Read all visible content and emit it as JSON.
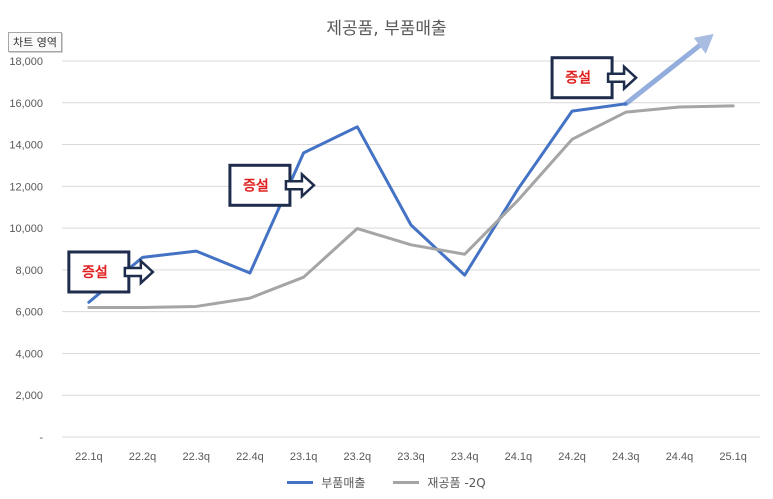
{
  "chart_data": {
    "type": "line",
    "title": "제공품, 부품매출",
    "categories": [
      "22.1q",
      "22.2q",
      "22.3q",
      "22.4q",
      "23.1q",
      "23.2q",
      "23.3q",
      "23.4q",
      "24.1q",
      "24.2q",
      "24.3q",
      "24.4q",
      "25.1q"
    ],
    "series": [
      {
        "name": "부품매출",
        "color": "#4472c4",
        "values": [
          6450,
          8600,
          8900,
          7850,
          13600,
          14850,
          10150,
          7750,
          11900,
          15600,
          15950,
          null,
          null
        ]
      },
      {
        "name": "재공품 -2Q",
        "color": "#a5a5a5",
        "values": [
          6200,
          6200,
          6250,
          6650,
          7650,
          9980,
          9200,
          8750,
          11350,
          14250,
          15550,
          15800,
          15850
        ]
      }
    ],
    "ylim": [
      0,
      18000
    ],
    "yticks": [
      0,
      2000,
      4000,
      6000,
      8000,
      10000,
      12000,
      14000,
      16000,
      18000
    ],
    "ytick_labels": [
      "-",
      "2,000",
      "4,000",
      "6,000",
      "8,000",
      "10,000",
      "12,000",
      "14,000",
      "16,000",
      "18,000"
    ],
    "grid": true,
    "legend_position": "bottom",
    "annotations": [
      {
        "text": "증설",
        "at_category": "22.1q",
        "at_value": 7900
      },
      {
        "text": "증설",
        "at_category": "22.4q",
        "at_value": 12050
      },
      {
        "text": "증설",
        "at_category": "24.2q",
        "at_value": 17200
      }
    ]
  },
  "ui": {
    "chart_area_label": "차트 영역"
  }
}
